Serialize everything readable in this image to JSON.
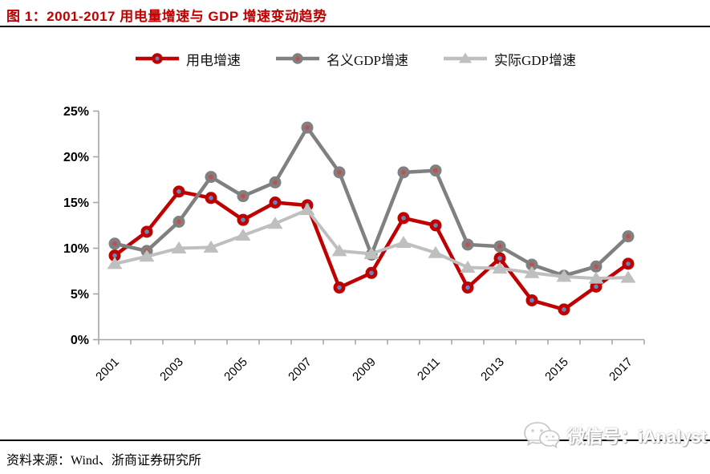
{
  "page": {
    "title": "图 1：2001-2017 用电量增速与 GDP 增速变动趋势",
    "title_color": "#C00000"
  },
  "chart_data": {
    "type": "line",
    "title": "图 1：2001-2017 用电量增速与 GDP 增速变动趋势",
    "x": [
      2001,
      2002,
      2003,
      2004,
      2005,
      2006,
      2007,
      2008,
      2009,
      2010,
      2011,
      2012,
      2013,
      2014,
      2015,
      2016,
      2017
    ],
    "x_tick_labels": [
      "2001",
      "2003",
      "2005",
      "2007",
      "2009",
      "2011",
      "2013",
      "2015",
      "2017"
    ],
    "ylim": [
      0,
      25
    ],
    "ytick_step": 5,
    "ytick_labels": [
      "0%",
      "5%",
      "10%",
      "15%",
      "20%",
      "25%"
    ],
    "grid": false,
    "legend_position": "top-center",
    "axis_color": "#a6a6a6",
    "series": [
      {
        "name": "用电增速",
        "color": "#C00000",
        "marker": "circle-dot",
        "marker_dot_color": "#6886b5",
        "values": [
          9.2,
          11.8,
          16.2,
          15.5,
          13.1,
          15.0,
          14.7,
          5.7,
          7.3,
          13.3,
          12.5,
          5.7,
          8.9,
          4.3,
          3.3,
          5.8,
          8.3
        ]
      },
      {
        "name": "名义GDP增速",
        "color": "#808080",
        "marker": "circle-dot",
        "marker_dot_color": "#C0504D",
        "values": [
          10.5,
          9.7,
          12.9,
          17.8,
          15.7,
          17.2,
          23.2,
          18.3,
          9.3,
          18.3,
          18.5,
          10.4,
          10.2,
          8.2,
          7.0,
          8.0,
          11.3
        ]
      },
      {
        "name": "实际GDP增速",
        "color": "#BFBFBF",
        "marker": "triangle",
        "values": [
          8.3,
          9.1,
          10.0,
          10.1,
          11.4,
          12.7,
          14.2,
          9.7,
          9.4,
          10.6,
          9.5,
          7.9,
          7.8,
          7.3,
          6.9,
          6.7,
          6.8
        ]
      }
    ]
  },
  "footer": {
    "source": "资料来源：Wind、浙商证券研究所"
  },
  "watermark": {
    "icon": "wechat-icon",
    "text": "微信号：iAnalyst"
  }
}
